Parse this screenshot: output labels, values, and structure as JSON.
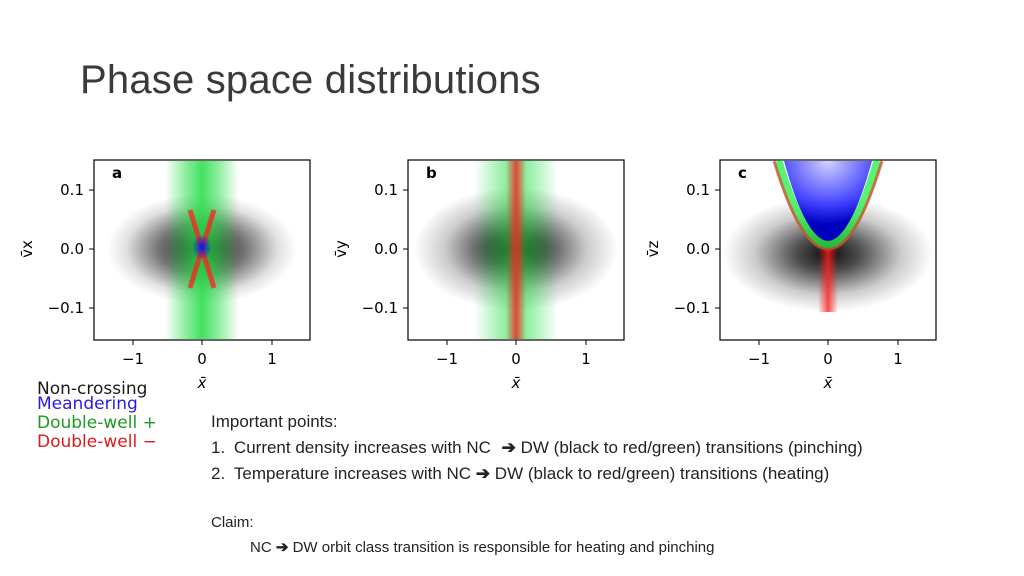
{
  "slide": {
    "title": "Phase space distributions"
  },
  "chart_data": [
    {
      "type": "heatmap",
      "panel_label": "a",
      "ylabel": "v̄x",
      "xlabel": "x̄",
      "x_ticks": [
        "−1",
        "0",
        "1"
      ],
      "y_ticks": [
        "0.1",
        "0.0",
        "−0.1"
      ],
      "x_tick_values": [
        -1,
        0,
        1
      ],
      "y_tick_values": [
        0.1,
        0.0,
        -0.1
      ],
      "xlim": [
        -1.5,
        1.5
      ],
      "ylim": [
        -0.15,
        0.15
      ],
      "populations": [
        "Non-crossing",
        "Double-well +",
        "Double-well −",
        "Meandering"
      ]
    },
    {
      "type": "heatmap",
      "panel_label": "b",
      "ylabel": "v̄y",
      "xlabel": "x̄",
      "x_ticks": [
        "−1",
        "0",
        "1"
      ],
      "y_ticks": [
        "0.1",
        "0.0",
        "−0.1"
      ],
      "x_tick_values": [
        -1,
        0,
        1
      ],
      "y_tick_values": [
        0.1,
        0.0,
        -0.1
      ],
      "xlim": [
        -1.5,
        1.5
      ],
      "ylim": [
        -0.15,
        0.15
      ],
      "populations": [
        "Non-crossing",
        "Double-well +",
        "Double-well −"
      ]
    },
    {
      "type": "heatmap",
      "panel_label": "c",
      "ylabel": "v̄z",
      "xlabel": "x̄",
      "x_ticks": [
        "−1",
        "0",
        "1"
      ],
      "y_ticks": [
        "0.1",
        "0.0",
        "−0.1"
      ],
      "x_tick_values": [
        -1,
        0,
        1
      ],
      "y_tick_values": [
        0.1,
        0.0,
        -0.1
      ],
      "xlim": [
        -1.5,
        1.5
      ],
      "ylim": [
        -0.15,
        0.15
      ],
      "populations": [
        "Non-crossing",
        "Meandering",
        "Double-well +",
        "Double-well −"
      ]
    }
  ],
  "legend": [
    {
      "label": "Non-crossing",
      "color": "#1a1a1a"
    },
    {
      "label": "Meandering",
      "color": "#2a1ae0"
    },
    {
      "label": "Double-well +",
      "color": "#1e9a1e"
    },
    {
      "label": "Double-well −",
      "color": "#e01a1a"
    }
  ],
  "notes": {
    "heading": "Important points:",
    "points": [
      {
        "num": "1.",
        "before": "Current density increases with NC",
        "arrow": "➔",
        "after": "DW (black to red/green) transitions (pinching)"
      },
      {
        "num": "2.",
        "before": "Temperature increases with NC",
        "arrow": "➔",
        "after": "DW (black to red/green) transitions (heating)"
      }
    ]
  },
  "claim": {
    "heading": "Claim:",
    "before": "NC",
    "arrow": "➔",
    "after": "DW orbit class transition is responsible for heating and pinching"
  }
}
